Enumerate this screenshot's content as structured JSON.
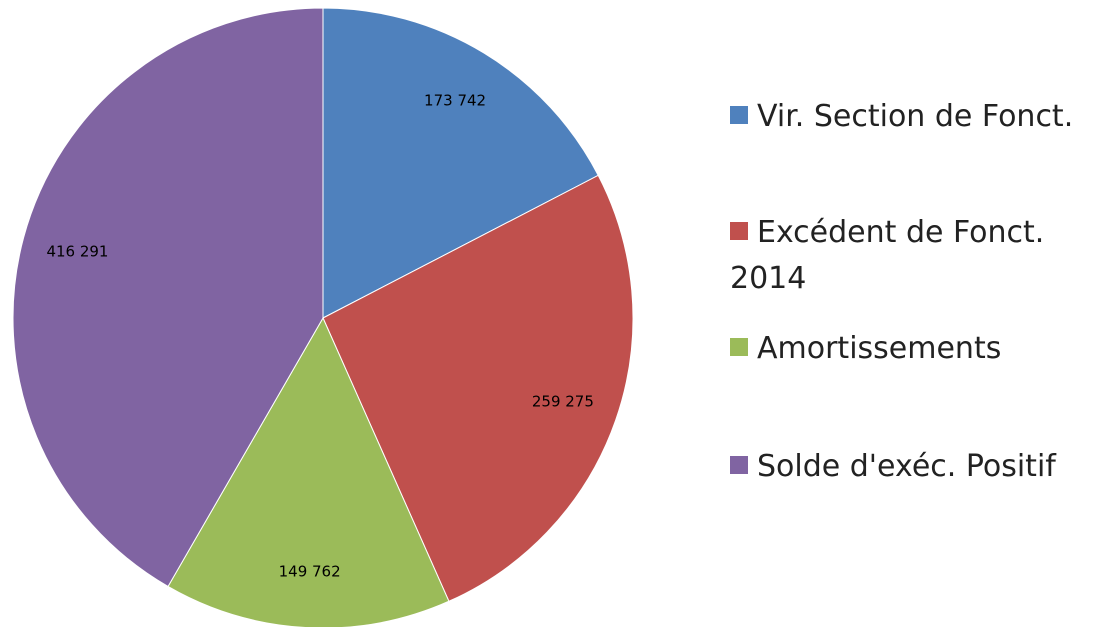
{
  "chart_data": {
    "type": "pie",
    "categories": [
      "Vir. Section de Fonct.",
      "Excédent de Fonct. 2014",
      "Amortissements",
      "Solde d'exéc. Positif"
    ],
    "values": [
      173742,
      259275,
      149762,
      416291
    ],
    "value_labels": [
      "173 742",
      "259 275",
      "149 762",
      "416 291"
    ],
    "colors": [
      "#4f81bd",
      "#c0504d",
      "#9bbb59",
      "#8064a2"
    ]
  }
}
